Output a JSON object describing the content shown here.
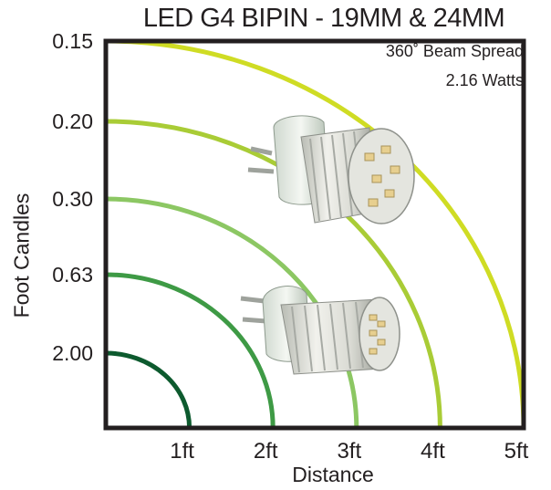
{
  "chart_data": {
    "type": "line",
    "title": "LED G4 BIPIN - 19MM & 24MM",
    "annotations": [
      "360˚ Beam Spread",
      "2.16 Watts"
    ],
    "xlabel": "Distance",
    "ylabel": "Foot Candles",
    "x_tick_labels": [
      "1ft",
      "2ft",
      "3ft",
      "4ft",
      "5ft"
    ],
    "y_tick_labels": [
      "0.15",
      "0.20",
      "0.30",
      "0.63",
      "2.00"
    ],
    "grid": false,
    "series": [
      {
        "distance_ft": 1,
        "foot_candles": 2.0,
        "color": "#0d5a2e"
      },
      {
        "distance_ft": 2,
        "foot_candles": 0.63,
        "color": "#3e9a45"
      },
      {
        "distance_ft": 3,
        "foot_candles": 0.3,
        "color": "#8cc763"
      },
      {
        "distance_ft": 4,
        "foot_candles": 0.2,
        "color": "#a9cc36"
      },
      {
        "distance_ft": 5,
        "foot_candles": 0.15,
        "color": "#cfdc24"
      }
    ],
    "image_description_icons": [
      "led-bulb-19mm-icon",
      "led-bulb-24mm-icon"
    ]
  }
}
